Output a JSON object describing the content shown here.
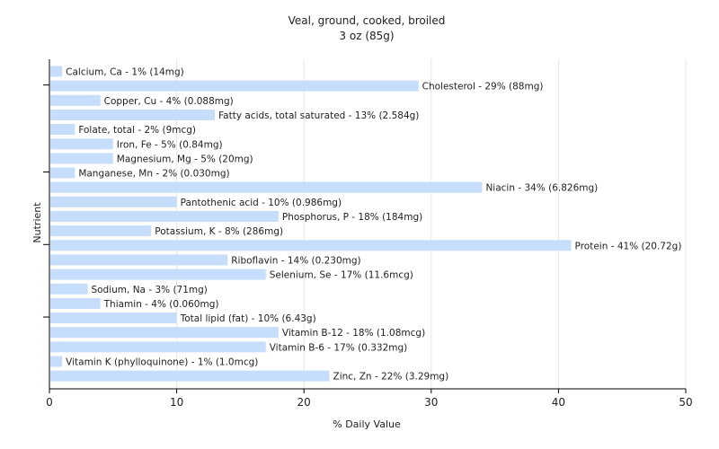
{
  "chart_data": {
    "type": "bar",
    "orientation": "horizontal",
    "title": "Veal, ground, cooked, broiled",
    "subtitle": "3 oz (85g)",
    "xlabel": "% Daily Value",
    "ylabel": "Nutrient",
    "xlim": [
      0,
      50
    ],
    "xticks": [
      0,
      10,
      20,
      30,
      40,
      50
    ],
    "grid": true,
    "bar_color": "#c6ddfb",
    "categories": [
      "Calcium, Ca - 1% (14mg)",
      "Cholesterol - 29% (88mg)",
      "Copper, Cu - 4% (0.088mg)",
      "Fatty acids, total saturated - 13% (2.584g)",
      "Folate, total - 2% (9mcg)",
      "Iron, Fe - 5% (0.84mg)",
      "Magnesium, Mg - 5% (20mg)",
      "Manganese, Mn - 2% (0.030mg)",
      "Niacin - 34% (6.826mg)",
      "Pantothenic acid - 10% (0.986mg)",
      "Phosphorus, P - 18% (184mg)",
      "Potassium, K - 8% (286mg)",
      "Protein - 41% (20.72g)",
      "Riboflavin - 14% (0.230mg)",
      "Selenium, Se - 17% (11.6mcg)",
      "Sodium, Na - 3% (71mg)",
      "Thiamin - 4% (0.060mg)",
      "Total lipid (fat) - 10% (6.43g)",
      "Vitamin B-12 - 18% (1.08mcg)",
      "Vitamin B-6 - 17% (0.332mg)",
      "Vitamin K (phylloquinone) - 1% (1.0mcg)",
      "Zinc, Zn - 22% (3.29mg)"
    ],
    "values": [
      1,
      29,
      4,
      13,
      2,
      5,
      5,
      2,
      34,
      10,
      18,
      8,
      41,
      14,
      17,
      3,
      4,
      10,
      18,
      17,
      1,
      22
    ]
  }
}
